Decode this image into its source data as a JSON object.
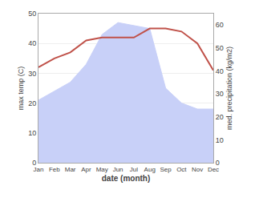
{
  "chart_data": {
    "type": "line",
    "categories": [
      "Jan",
      "Feb",
      "Mar",
      "Apr",
      "May",
      "Jun",
      "Jul",
      "Aug",
      "Sep",
      "Oct",
      "Nov",
      "Dec"
    ],
    "series": [
      {
        "type": "area",
        "color": "#c8d0f8",
        "values": [
          21,
          24,
          27,
          33,
          43,
          47,
          46,
          45,
          25,
          20,
          18,
          18
        ]
      },
      {
        "type": "line",
        "color": "#c0524a",
        "values": [
          32,
          35,
          37,
          41,
          42,
          42,
          42,
          45,
          45,
          44,
          40,
          31
        ]
      }
    ],
    "xlabel": "date (month)",
    "ylabel": "max temp (C)",
    "y2label": "med. precipitation (kg/m2)",
    "ylim": [
      0,
      50
    ],
    "yticks": [
      0,
      10,
      20,
      30,
      40,
      50
    ],
    "y2lim": [
      0,
      65
    ],
    "y2ticks": [
      0,
      10,
      20,
      30,
      40,
      50,
      60
    ],
    "grid": true
  }
}
